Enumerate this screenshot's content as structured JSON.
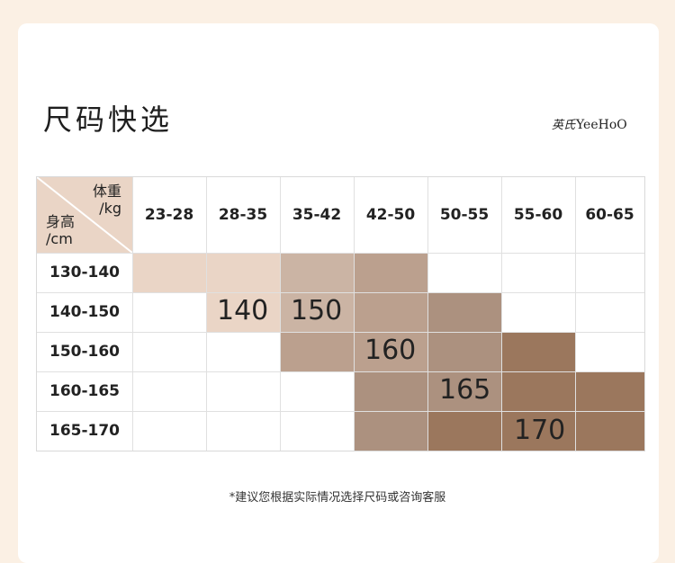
{
  "title": "尺码快选",
  "logo": {
    "cn": "英氏",
    "en": "YeeHoO"
  },
  "table": {
    "corner": {
      "weight_label": "体重",
      "weight_unit": "/kg",
      "height_label": "身高",
      "height_unit": "/cm"
    },
    "weight_ranges": [
      "23-28",
      "28-35",
      "35-42",
      "42-50",
      "50-55",
      "55-60",
      "60-65"
    ],
    "height_ranges": [
      "130-140",
      "140-150",
      "150-160",
      "160-165",
      "165-170"
    ],
    "sizes": [
      "140",
      "150",
      "160",
      "165",
      "170"
    ],
    "size_colors": {
      "140": "#ead5c6",
      "150": "#cbb4a4",
      "160": "#bba08e",
      "165": "#ac917f",
      "170": "#9b775d"
    }
  },
  "note": "*建议您根据实际情况选择尺码或咨询客服"
}
